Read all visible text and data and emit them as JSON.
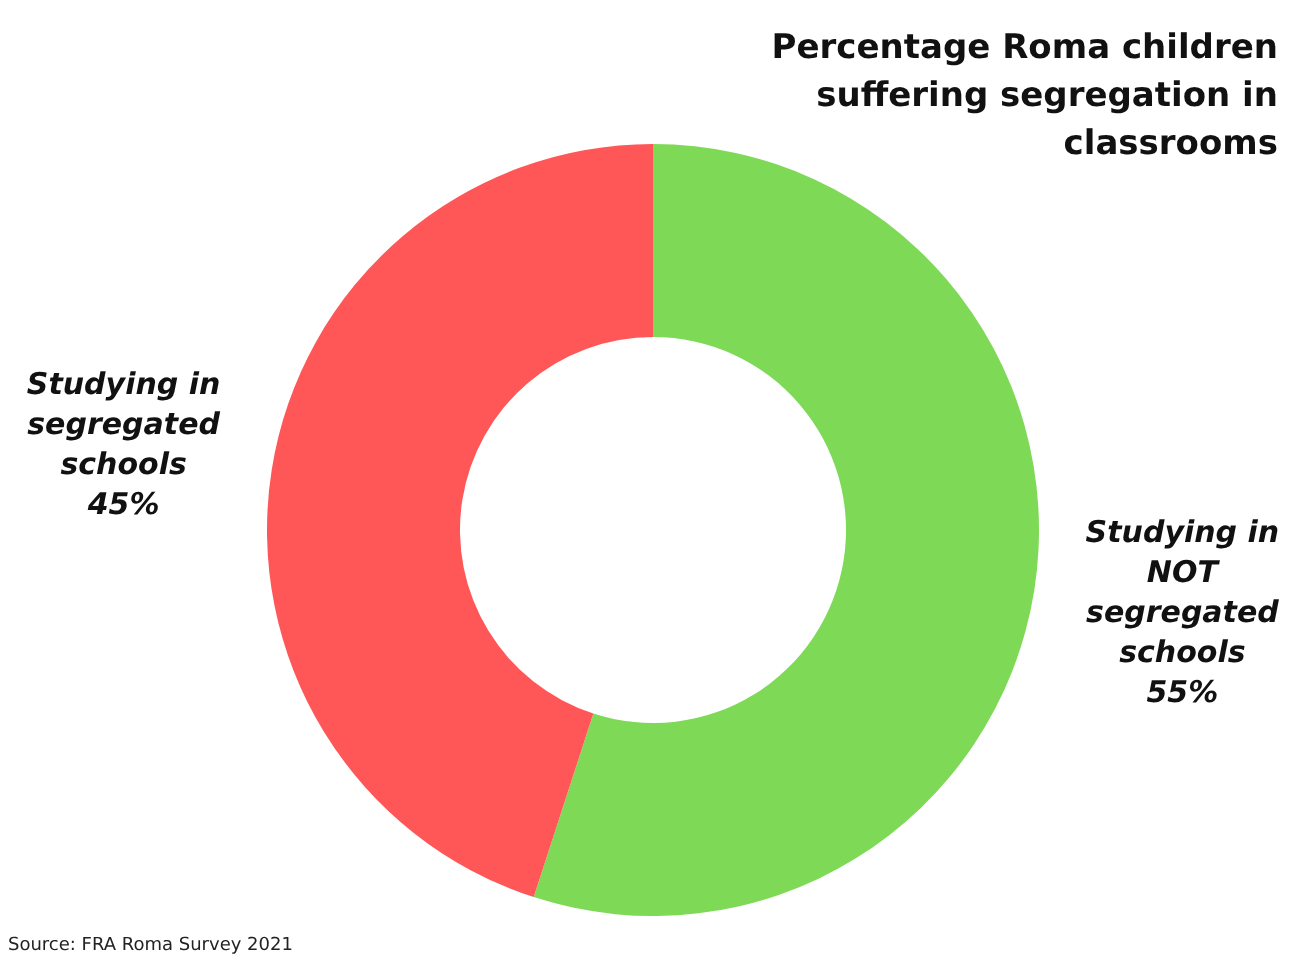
{
  "chart_data": {
    "type": "donut",
    "title": "Percentage Roma children suffering segregation in classrooms",
    "categories": [
      "Studying in NOT segregated schools",
      "Studying in segregated schools"
    ],
    "values": [
      55,
      45
    ],
    "colors": [
      "#7ed957",
      "#ff5757"
    ],
    "value_labels": [
      "55%",
      "45%"
    ],
    "legend": false,
    "annotations": [
      "Source: FRA Roma Survey 2021"
    ]
  }
}
